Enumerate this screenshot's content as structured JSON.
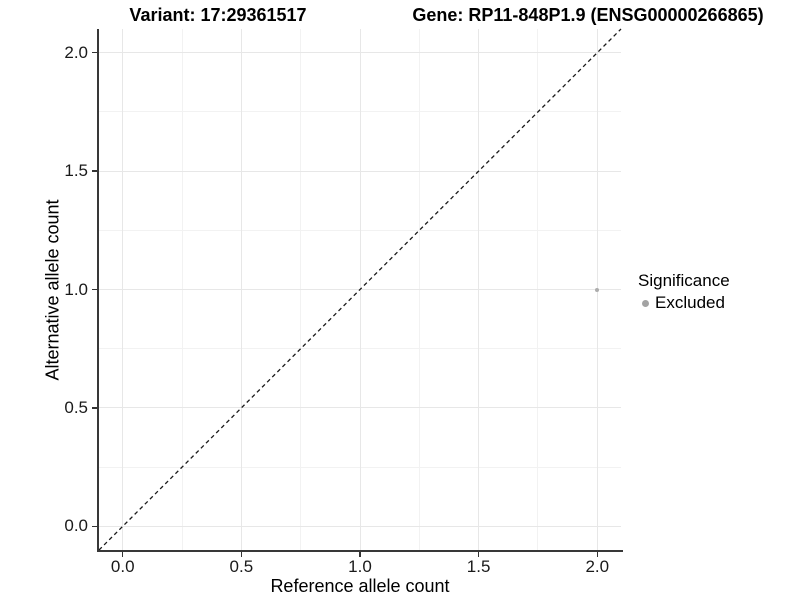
{
  "titles": {
    "variant": "Variant: 17:29361517",
    "gene": "Gene: RP11-848P1.9 (ENSG00000266865)"
  },
  "chart_data": {
    "type": "scatter",
    "xlabel": "Reference allele count",
    "ylabel": "Alternative allele count",
    "xlim": [
      -0.1,
      2.1
    ],
    "ylim": [
      -0.1,
      2.1
    ],
    "x_ticks": [
      0,
      0.5,
      1,
      1.5,
      2
    ],
    "x_tick_labels": [
      "0.0",
      "0.5",
      "1.0",
      "1.5",
      "2.0"
    ],
    "y_ticks": [
      0,
      0.5,
      1,
      1.5,
      2
    ],
    "y_tick_labels": [
      "0.0",
      "0.5",
      "1.0",
      "1.5",
      "2.0"
    ],
    "x_minor_ticks": [
      0.25,
      0.75,
      1.25,
      1.75
    ],
    "y_minor_ticks": [
      0.25,
      0.75,
      1.25,
      1.75
    ],
    "grid": "major+minor",
    "series": [
      {
        "name": "Excluded",
        "color": "#adadad",
        "marker": "circle",
        "points": [
          {
            "x": 2.0,
            "y": 1.0
          }
        ]
      }
    ],
    "reference_line": {
      "kind": "identity",
      "from": [
        -0.1,
        -0.1
      ],
      "to": [
        2.1,
        2.1
      ],
      "style": "dashed",
      "color": "#1a1a1a"
    },
    "legend": {
      "title": "Significance",
      "position": "right",
      "items": [
        {
          "label": "Excluded",
          "color": "#a3a3a3",
          "marker": "circle"
        }
      ]
    },
    "colors": {
      "grid_major": "#e7e7e7",
      "grid_minor": "#f2f2f2",
      "axis_line": "#383838",
      "tick_text": "#1a1a1a"
    }
  }
}
